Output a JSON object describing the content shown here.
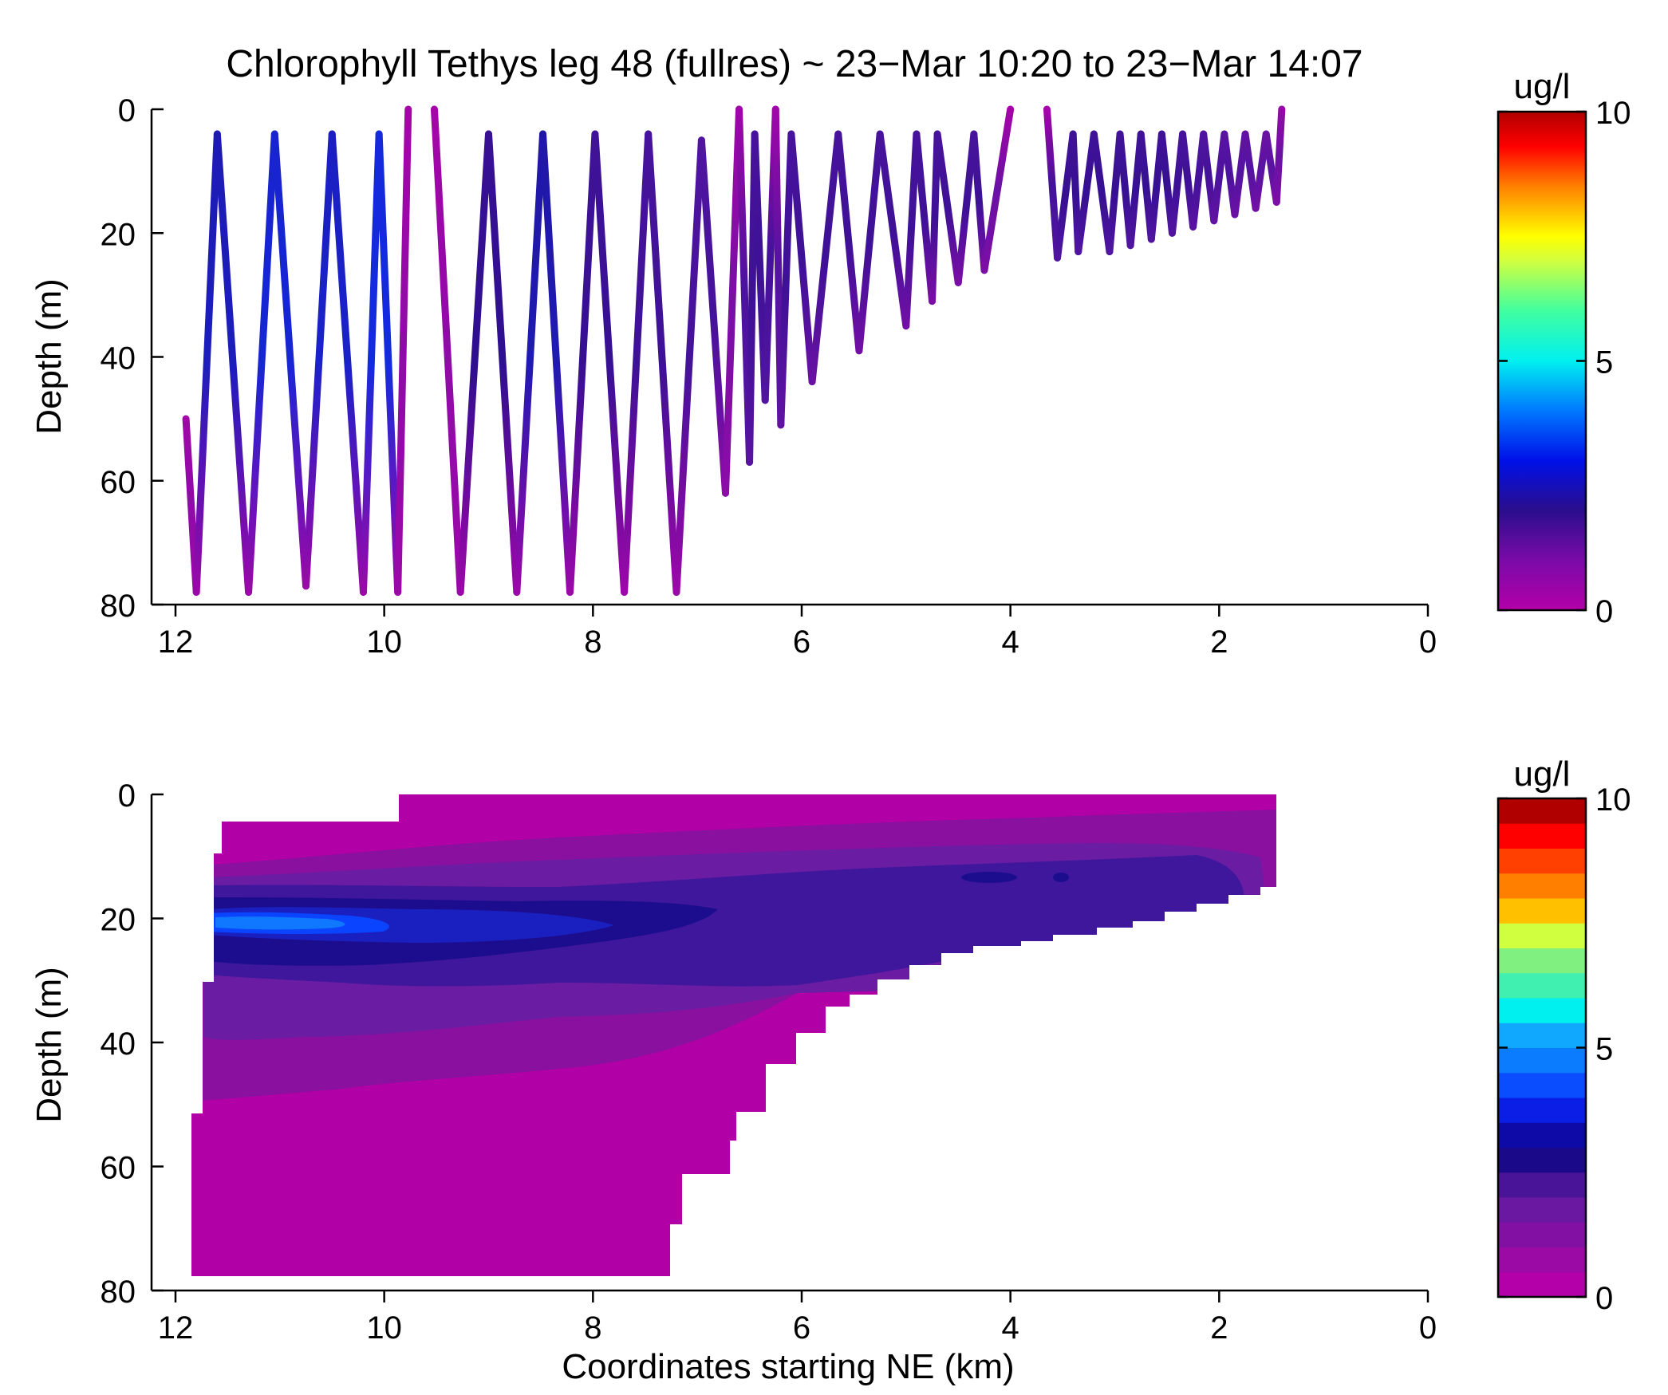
{
  "chart_data": [
    {
      "type": "line",
      "title": "Chlorophyll Tethys leg 48 (fullres) ~ 23−Mar 10:20 to 23−Mar 14:07",
      "xlabel": "",
      "ylabel": "Depth (m)",
      "xlim": [
        12.5,
        0
      ],
      "ylim": [
        0,
        80
      ],
      "x_reversed": true,
      "y_reversed": true,
      "xticks": [
        "12",
        "10",
        "8",
        "6",
        "4",
        "2",
        "0"
      ],
      "yticks": [
        "0",
        "20",
        "40",
        "60",
        "80"
      ],
      "colorbar": {
        "label": "ug/l",
        "min": 0,
        "max": 10,
        "ticks": [
          "0",
          "5",
          "10"
        ],
        "colormap": "purple-blue-cyan-green-yellow-red"
      },
      "series": [
        {
          "x": [
            11.9,
            11.8,
            11.6,
            11.3,
            11.05,
            10.75,
            10.5,
            10.2,
            10.05,
            9.87,
            9.77,
            9.52,
            9.27,
            9.0,
            8.73,
            8.48,
            8.22,
            7.98,
            7.7,
            7.47,
            7.2,
            6.96,
            6.73,
            6.6,
            6.5,
            6.45,
            6.35,
            6.25,
            6.2,
            6.1,
            5.9,
            5.65,
            5.45,
            5.25,
            5.0,
            4.9,
            4.75,
            4.7,
            4.5,
            4.35,
            4.25,
            4.0,
            3.65,
            3.55,
            3.4,
            3.35,
            3.2,
            3.05,
            2.95,
            2.85,
            2.75,
            2.65,
            2.55,
            2.45,
            2.35,
            2.25,
            2.15,
            2.05,
            1.95,
            1.85,
            1.75,
            1.65,
            1.55,
            1.45,
            1.4
          ],
          "y": [
            50,
            78,
            4,
            78,
            4,
            77,
            4,
            78,
            4,
            78,
            0,
            0,
            78,
            4,
            78,
            4,
            78,
            4,
            78,
            4,
            78,
            5,
            62,
            0,
            57,
            4,
            47,
            0,
            51,
            4,
            44,
            4,
            39,
            4,
            35,
            4,
            31,
            4,
            28,
            4,
            26,
            0,
            0,
            24,
            4,
            23,
            4,
            23,
            4,
            22,
            4,
            21,
            4,
            20,
            4,
            19,
            4,
            18,
            4,
            17,
            4,
            16,
            4,
            15,
            0
          ],
          "values": [
            0.4,
            0.5,
            2.3,
            0.5,
            2.5,
            0.5,
            2.4,
            0.5,
            2.6,
            0.5,
            0.3,
            0.3,
            0.5,
            1.8,
            0.5,
            2.2,
            0.5,
            1.7,
            0.5,
            1.6,
            0.5,
            1.5,
            0.8,
            0.4,
            1.4,
            1.6,
            1.5,
            0.4,
            1.3,
            1.6,
            1.2,
            1.6,
            1.1,
            1.6,
            1.1,
            1.6,
            1.0,
            1.6,
            1.0,
            1.6,
            1.0,
            0.3,
            0.3,
            1.5,
            1.7,
            1.5,
            1.7,
            1.5,
            1.7,
            1.5,
            1.7,
            1.5,
            1.7,
            1.5,
            1.6,
            1.4,
            1.5,
            1.3,
            1.4,
            1.2,
            1.3,
            1.1,
            1.2,
            1.0,
            0.6
          ]
        }
      ]
    },
    {
      "type": "heatmap",
      "title": "",
      "xlabel": "Coordinates starting NE (km)",
      "ylabel": "Depth (m)",
      "xlim": [
        12.5,
        0
      ],
      "ylim": [
        0,
        80
      ],
      "x_reversed": true,
      "y_reversed": true,
      "xticks": [
        "12",
        "10",
        "8",
        "6",
        "4",
        "2",
        "0"
      ],
      "yticks": [
        "0",
        "20",
        "40",
        "60",
        "80"
      ],
      "colorbar": {
        "label": "ug/l",
        "min": 0,
        "max": 10,
        "ticks": [
          "0",
          "5",
          "10"
        ],
        "levels": 20
      },
      "filled_contours": [
        {
          "level": 0.5,
          "color": "#b000a6"
        },
        {
          "level": 1.0,
          "color": "#8a10a0"
        },
        {
          "level": 1.5,
          "color": "#6a1ca2"
        },
        {
          "level": 2.0,
          "color": "#3e179c"
        },
        {
          "level": 2.5,
          "color": "#1c0d8e"
        },
        {
          "level": 3.0,
          "color": "#1a20c0"
        },
        {
          "level": 3.5,
          "color": "#0a44ff"
        },
        {
          "level": 4.0,
          "color": "#0f78ff"
        }
      ]
    }
  ]
}
